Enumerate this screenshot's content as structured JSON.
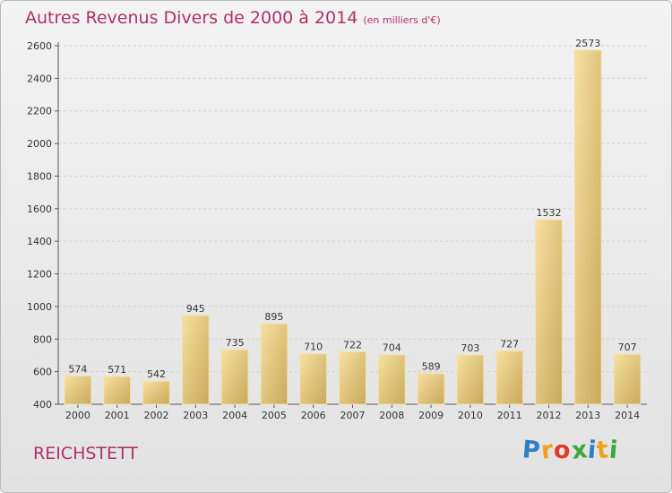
{
  "chart_data": {
    "type": "bar",
    "title": "Autres Revenus Divers de 2000 à 2014",
    "subtitle": "(en milliers d'€)",
    "categories": [
      "2000",
      "2001",
      "2002",
      "2003",
      "2004",
      "2005",
      "2006",
      "2007",
      "2008",
      "2009",
      "2010",
      "2011",
      "2012",
      "2013",
      "2014"
    ],
    "values": [
      574,
      571,
      542,
      945,
      735,
      895,
      710,
      722,
      704,
      589,
      703,
      727,
      1532,
      2573,
      707
    ],
    "ylim": [
      400,
      2600
    ],
    "yticks": [
      400,
      600,
      800,
      1000,
      1200,
      1400,
      1600,
      1800,
      2000,
      2200,
      2400,
      2600
    ],
    "grid": true,
    "bar_color": "#e7cc82"
  },
  "location": "REICHSTETT",
  "logo": {
    "letters": [
      "P",
      "r",
      "o",
      "x",
      "i",
      "t",
      "i"
    ],
    "colors": [
      "#2f7fc1",
      "#f0a020",
      "#e03a2a",
      "#3aa83a",
      "#2f7fc1",
      "#f0a020",
      "#3aa83a"
    ]
  }
}
